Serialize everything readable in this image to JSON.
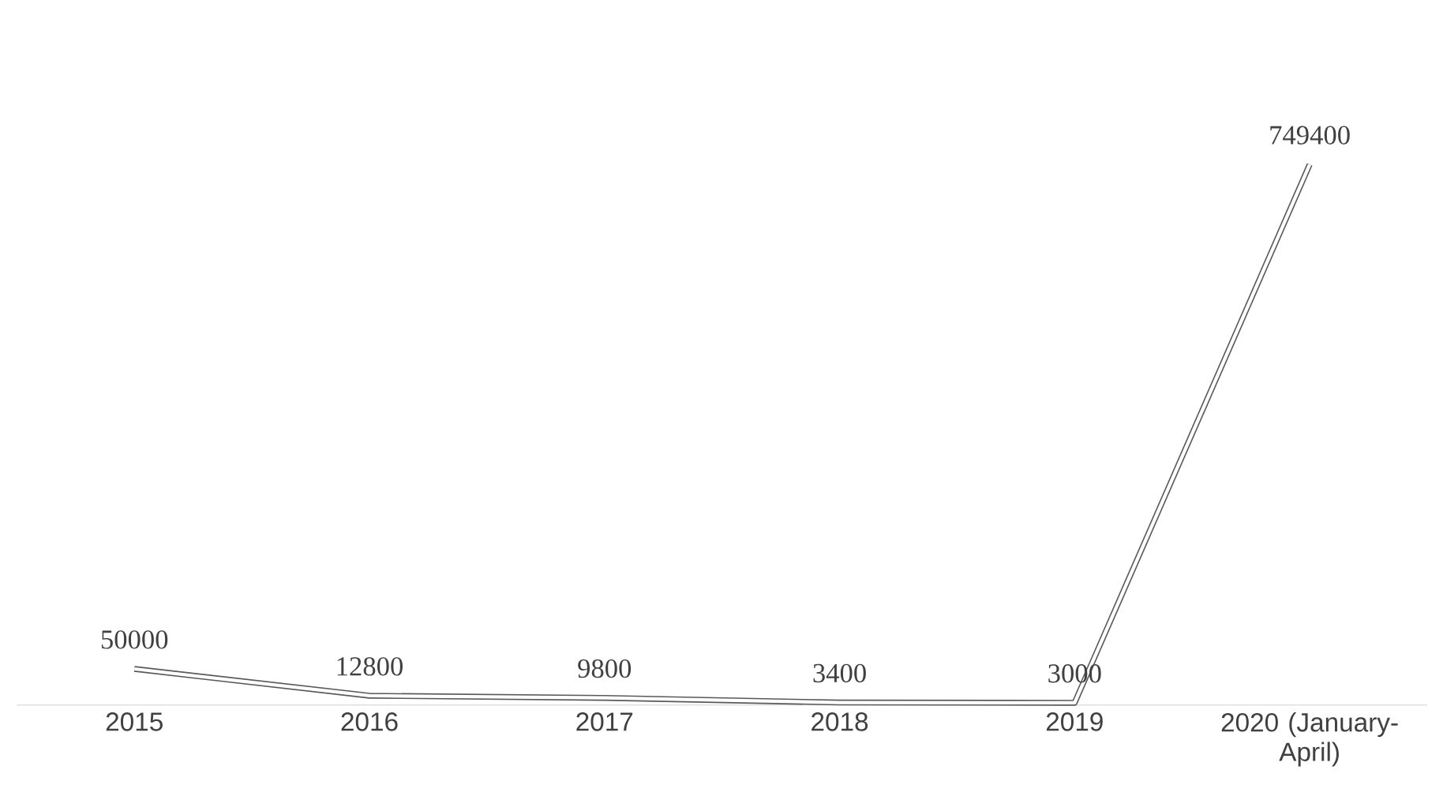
{
  "chart_data": {
    "type": "line",
    "categories": [
      "2015",
      "2016",
      "2017",
      "2018",
      "2019",
      "2020 (January-April)"
    ],
    "values": [
      50000,
      12800,
      9800,
      3400,
      3000,
      749400
    ],
    "color": "#595959",
    "data_labels": true,
    "marker": "none"
  }
}
